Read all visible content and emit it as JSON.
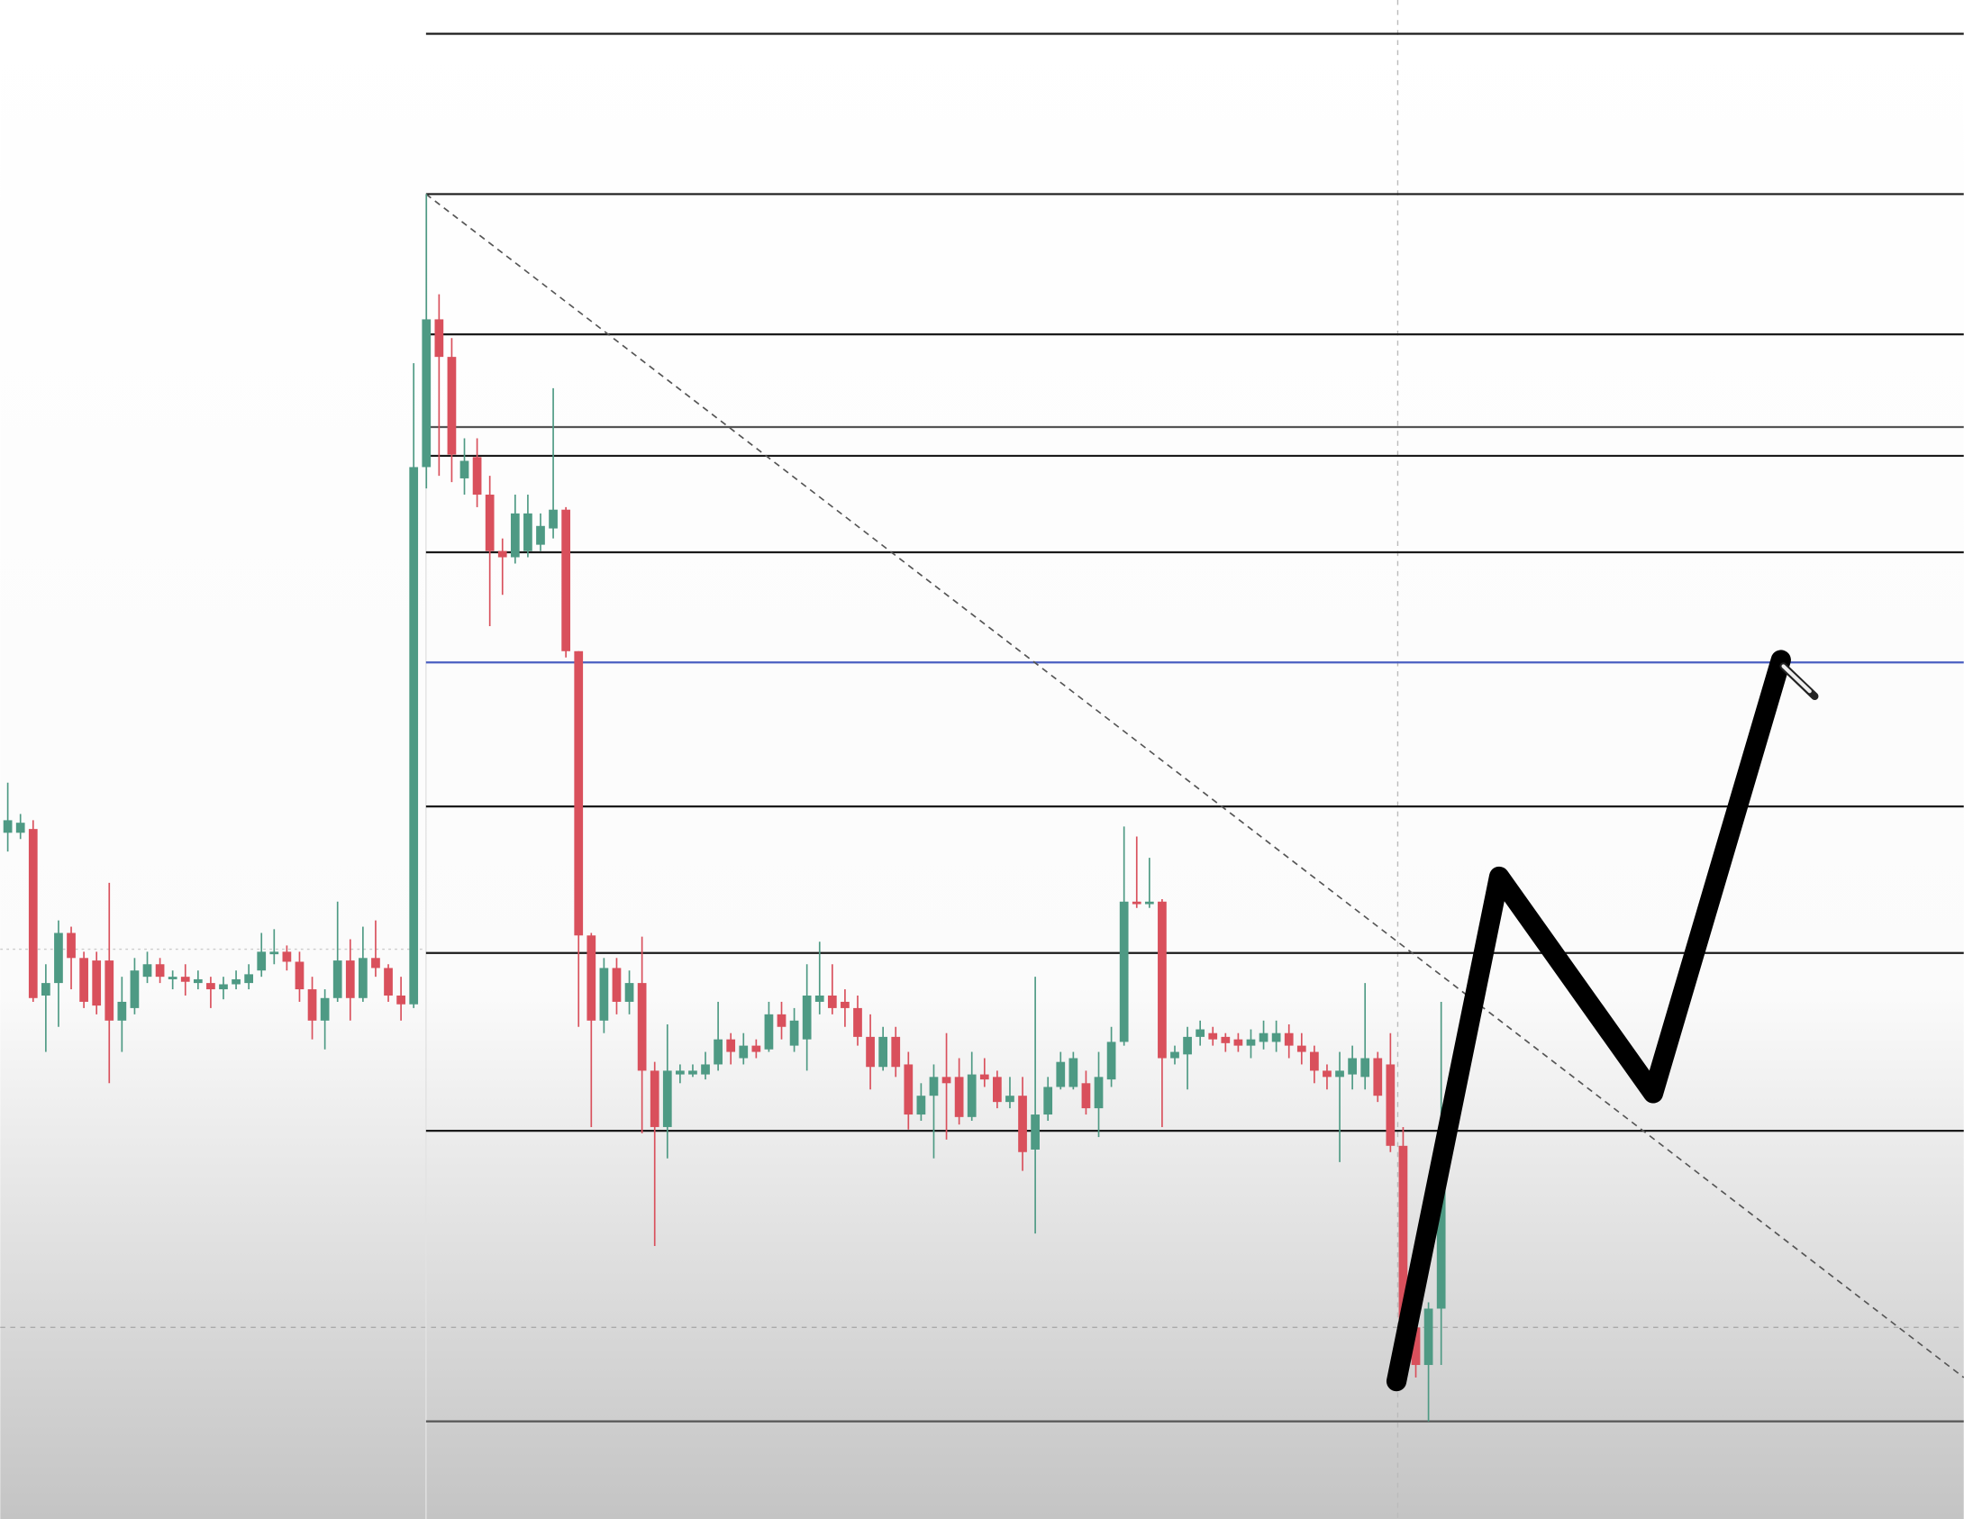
{
  "chart_data": {
    "type": "candlestick",
    "ylim": [
      -78,
      1135
    ],
    "up_color": "#4e9a84",
    "down_color": "#d9505c",
    "open": [
      470,
      470,
      473,
      340,
      350,
      390,
      370,
      368,
      368,
      320,
      330,
      355,
      365,
      353,
      355,
      350,
      350,
      345,
      349,
      350,
      360,
      373,
      375,
      367,
      345,
      320,
      338,
      368,
      338,
      370,
      362,
      340,
      333,
      762,
      880,
      850,
      753,
      770,
      740,
      695,
      690,
      695,
      700,
      713,
      728,
      615,
      388,
      320,
      362,
      335,
      350,
      280,
      235,
      277,
      277,
      277,
      285,
      305,
      290,
      300,
      297,
      325,
      300,
      305,
      335,
      340,
      335,
      330,
      307,
      283,
      307,
      285,
      245,
      260,
      275,
      275,
      243,
      277,
      275,
      255,
      260,
      217,
      245,
      267,
      267,
      270,
      250,
      273,
      303,
      415,
      413,
      415,
      290,
      293,
      307,
      310,
      307,
      305,
      300,
      303,
      303,
      310,
      300,
      295,
      280,
      275,
      277,
      275,
      290,
      285,
      220,
      75,
      45,
      90
    ],
    "high": [
      510,
      485,
      480,
      365,
      400,
      395,
      375,
      375,
      430,
      355,
      370,
      375,
      370,
      360,
      365,
      360,
      355,
      355,
      360,
      365,
      390,
      393,
      380,
      375,
      355,
      345,
      415,
      385,
      395,
      400,
      365,
      355,
      845,
      980,
      900,
      865,
      785,
      785,
      755,
      705,
      740,
      740,
      725,
      825,
      730,
      615,
      390,
      370,
      370,
      360,
      387,
      287,
      317,
      285,
      285,
      295,
      335,
      310,
      310,
      305,
      335,
      335,
      330,
      365,
      383,
      365,
      345,
      340,
      325,
      315,
      315,
      295,
      270,
      285,
      310,
      290,
      295,
      290,
      280,
      275,
      275,
      355,
      275,
      295,
      295,
      280,
      295,
      315,
      475,
      467,
      450,
      417,
      300,
      315,
      320,
      315,
      310,
      310,
      313,
      320,
      320,
      317,
      310,
      300,
      285,
      295,
      300,
      350,
      295,
      310,
      235,
      85,
      95,
      335
    ],
    "low": [
      455,
      465,
      335,
      295,
      315,
      345,
      330,
      325,
      270,
      295,
      325,
      350,
      350,
      345,
      340,
      345,
      330,
      337,
      345,
      345,
      355,
      365,
      360,
      335,
      305,
      297,
      335,
      320,
      335,
      355,
      335,
      320,
      330,
      745,
      755,
      750,
      740,
      730,
      635,
      660,
      685,
      690,
      695,
      705,
      610,
      315,
      235,
      310,
      325,
      325,
      230,
      140,
      210,
      270,
      275,
      273,
      280,
      285,
      285,
      290,
      295,
      305,
      295,
      280,
      325,
      325,
      315,
      300,
      265,
      280,
      275,
      233,
      240,
      210,
      225,
      237,
      240,
      267,
      250,
      250,
      200,
      150,
      240,
      265,
      265,
      245,
      227,
      267,
      300,
      410,
      410,
      235,
      285,
      265,
      300,
      300,
      295,
      295,
      290,
      297,
      295,
      290,
      285,
      270,
      265,
      207,
      265,
      265,
      255,
      215,
      35,
      35,
      0,
      45
    ],
    "close": [
      480,
      478,
      338,
      350,
      390,
      370,
      335,
      332,
      320,
      335,
      360,
      365,
      355,
      355,
      351,
      353,
      345,
      349,
      353,
      357,
      375,
      375,
      367,
      345,
      320,
      338,
      368,
      338,
      370,
      362,
      340,
      333,
      762,
      880,
      850,
      772,
      767,
      740,
      695,
      690,
      725,
      725,
      715,
      728,
      615,
      388,
      320,
      362,
      335,
      350,
      280,
      235,
      280,
      280,
      280,
      285,
      305,
      295,
      300,
      295,
      325,
      315,
      320,
      340,
      340,
      330,
      330,
      307,
      283,
      307,
      283,
      245,
      260,
      275,
      270,
      243,
      277,
      273,
      255,
      260,
      215,
      245,
      267,
      287,
      290,
      250,
      275,
      303,
      415,
      413,
      415,
      290,
      295,
      307,
      313,
      305,
      302,
      300,
      305,
      310,
      310,
      300,
      295,
      280,
      275,
      280,
      290,
      290,
      260,
      220,
      75,
      45,
      90,
      225
    ],
    "levels": [
      1108,
      980,
      868,
      794,
      771,
      694,
      606,
      491,
      374,
      232,
      0
    ],
    "level_colors": [
      "#1a1a1a",
      "#1a1a1a",
      "#1a1a1a",
      "#555555",
      "#1a1a1a",
      "#1a1a1a",
      "#4a5fc1",
      "#1a1a1a",
      "#1a1a1a",
      "#1a1a1a",
      "#555555"
    ]
  }
}
